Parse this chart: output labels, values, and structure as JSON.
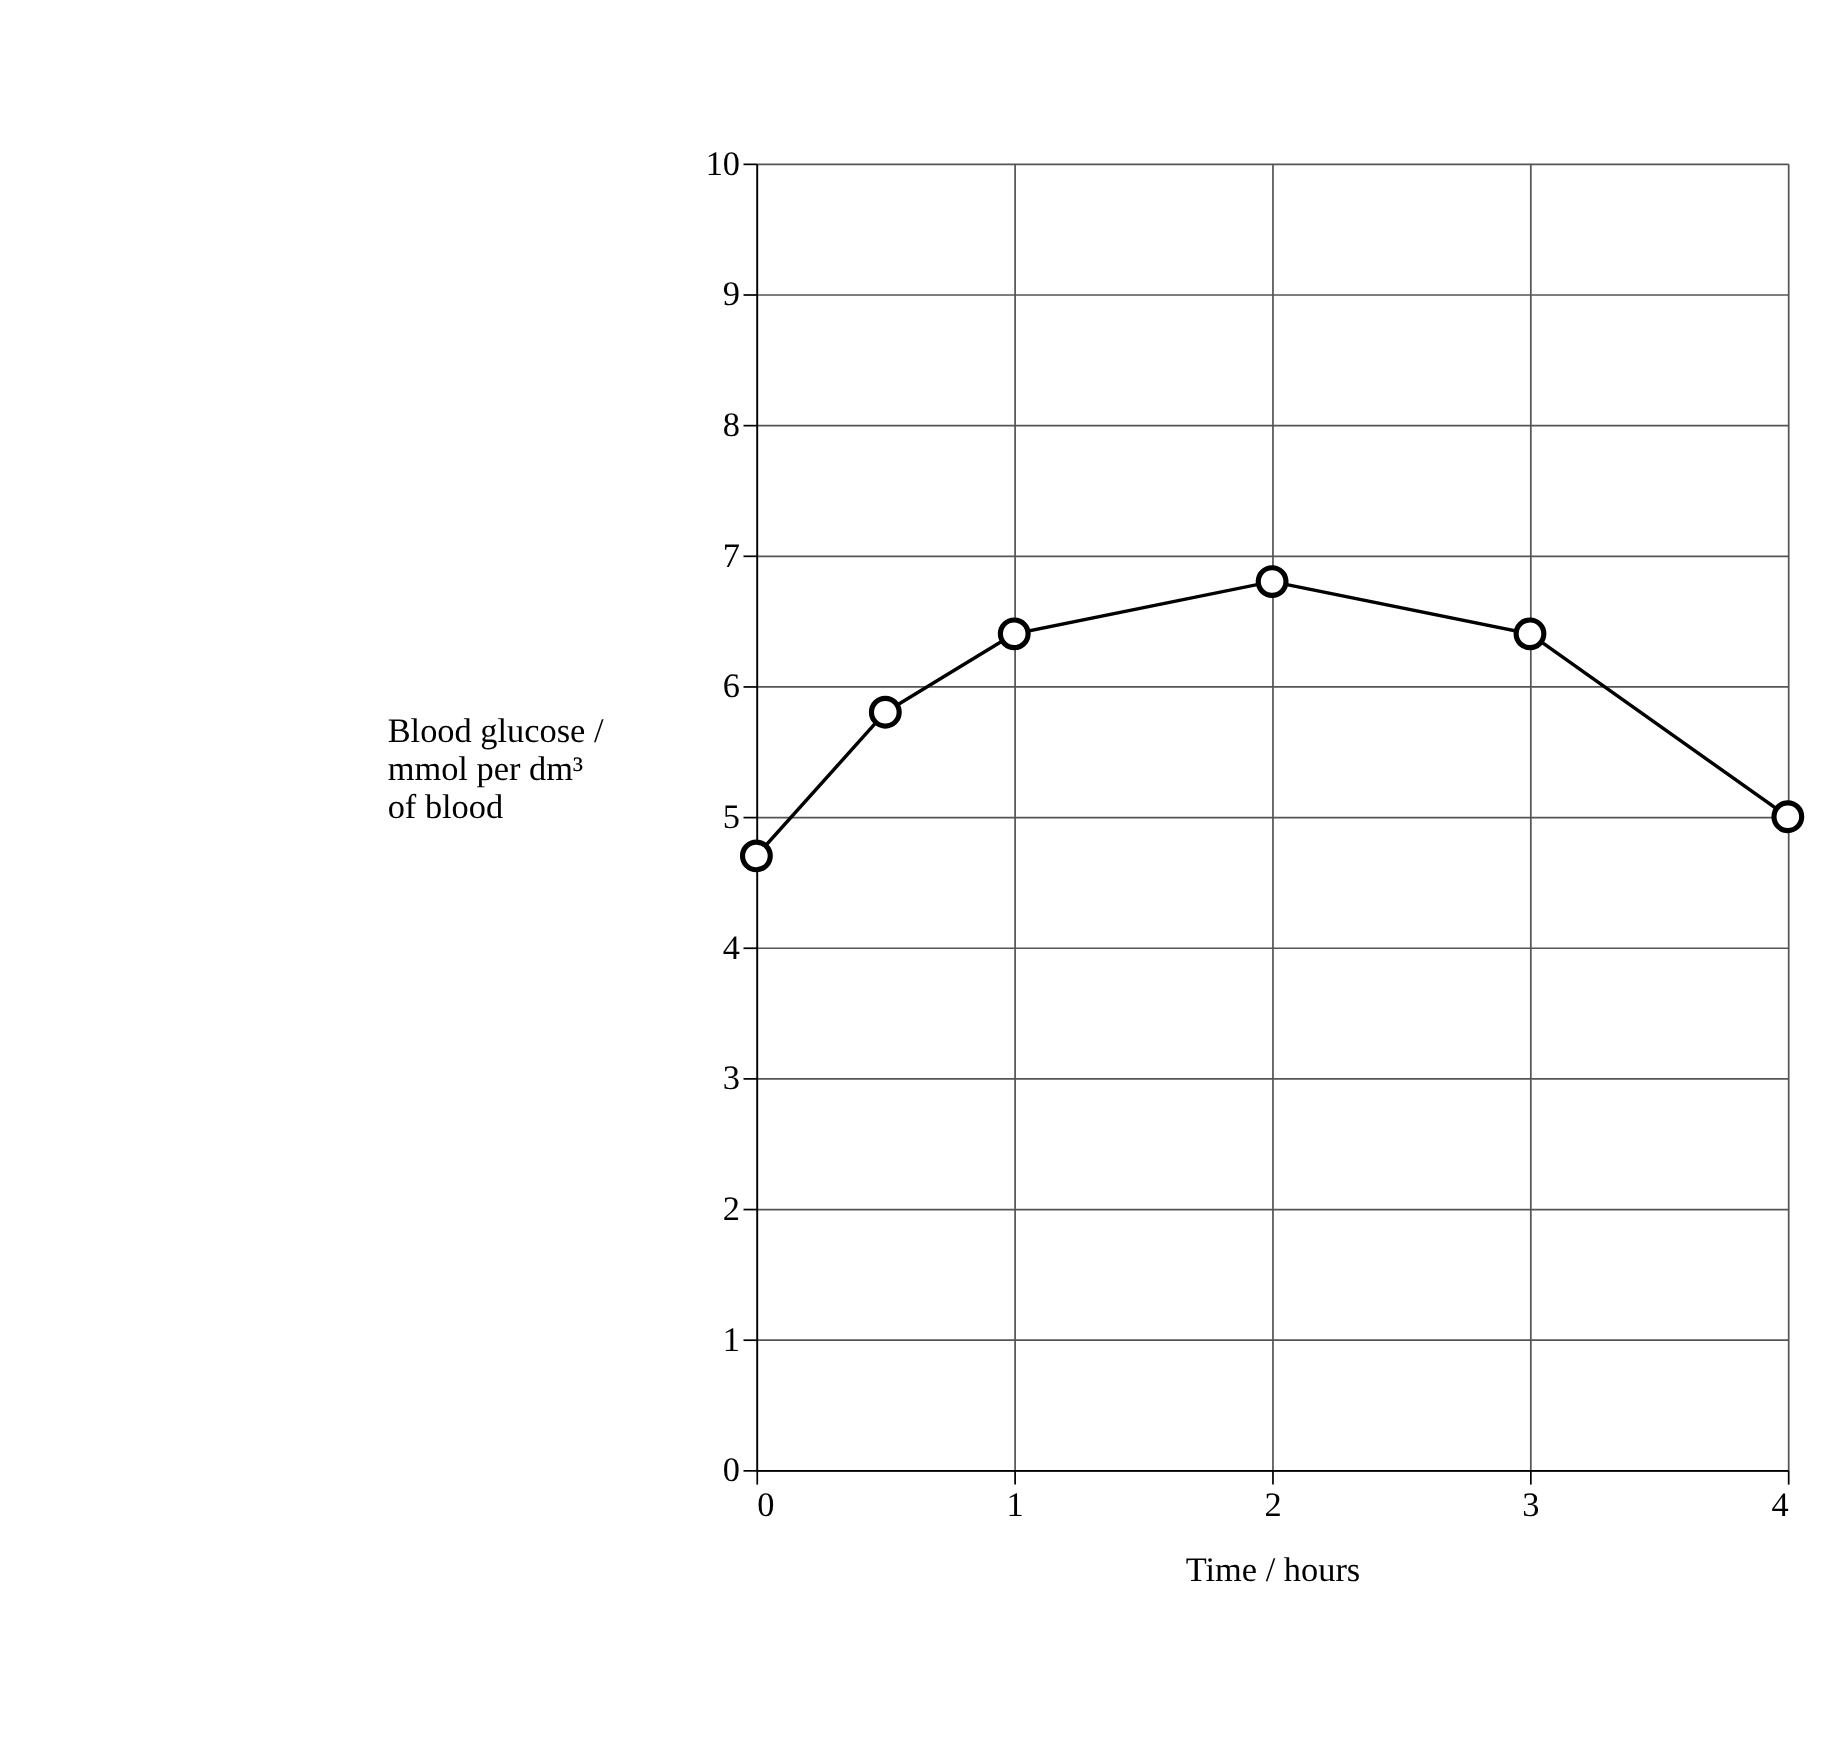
{
  "chart_data": {
    "type": "line",
    "xlabel": "Time / hours",
    "ylabel": "Blood glucose /\nmmol per dm³\nof blood",
    "x": [
      0,
      0.5,
      1,
      2,
      3,
      4
    ],
    "series": [
      {
        "color": "#000000",
        "values": [
          4.7,
          5.8,
          6.4,
          6.8,
          6.4,
          5.0
        ]
      }
    ],
    "xlim": [
      0,
      4
    ],
    "xticks": [
      0,
      1,
      2,
      3,
      4
    ],
    "ylim": [
      0,
      10
    ],
    "yticks": [
      0,
      1,
      2,
      3,
      4,
      5,
      6,
      7,
      8,
      9,
      10
    ],
    "grid": true,
    "marker": "circle",
    "line_style": "solid",
    "legend": false
  }
}
